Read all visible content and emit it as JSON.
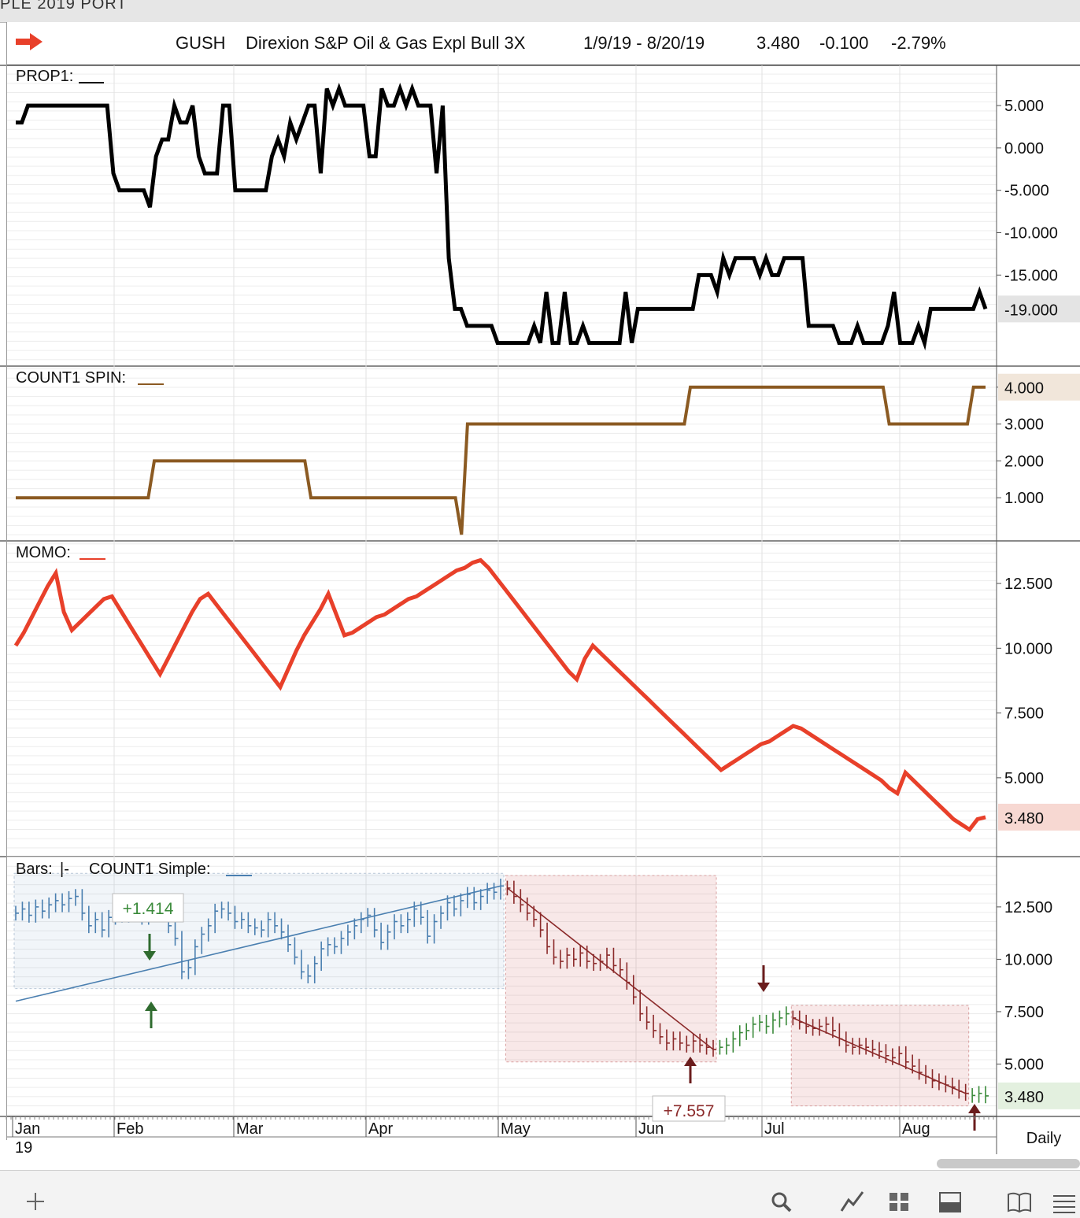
{
  "window": {
    "title_fragment": "PLE 2019 PORT"
  },
  "header": {
    "symbol": "GUSH",
    "name": "Direxion S&P Oil & Gas Expl Bull 3X",
    "date_range": "1/9/19 - 8/20/19",
    "last": "3.480",
    "change": "-0.100",
    "pct_change": "-2.79%"
  },
  "timeframe_label": "Daily",
  "x_axis": {
    "months": [
      "Jan",
      "Feb",
      "Mar",
      "Apr",
      "May",
      "Jun",
      "Jul",
      "Aug"
    ],
    "year": "19"
  },
  "toolbar": {
    "icons": [
      "plus-icon",
      "search-icon",
      "line-chart-icon",
      "grid-icon",
      "panel-icon",
      "book-icon",
      "menu-icon"
    ]
  },
  "colors": {
    "prop1": "#000000",
    "count1_spin": "#8b5a22",
    "momo": "#e8402a",
    "blue_bars": "#4a7fb0",
    "red_bars": "#8b2a2a",
    "green_bars": "#3a8a3a"
  },
  "chart_data": [
    {
      "type": "line",
      "panel": "PROP1",
      "label": "PROP1:",
      "ylim": [
        -25,
        9
      ],
      "ticks": [
        "5.000",
        "0.000",
        "-5.000",
        "-10.000",
        "-15.000"
      ],
      "last_value_label": "-19.000",
      "series": [
        {
          "values": [
            3,
            3,
            5,
            5,
            5,
            5,
            5,
            5,
            5,
            5,
            5,
            5,
            5,
            5,
            5,
            5,
            -3,
            -5,
            -5,
            -5,
            -5,
            -5,
            -7,
            -1,
            1,
            1,
            5,
            3,
            3,
            5,
            -1,
            -3,
            -3,
            -3,
            5,
            5,
            -5,
            -5,
            -5,
            -5,
            -5,
            -5,
            -1,
            1,
            -1,
            3,
            1,
            3,
            5,
            5,
            -3,
            7,
            5,
            7,
            5,
            5,
            5,
            5,
            -1,
            -1,
            7,
            5,
            5,
            7,
            5,
            7,
            5,
            5,
            5,
            -3,
            5,
            -13,
            -19,
            -19,
            -21,
            -21,
            -21,
            -21,
            -21,
            -23,
            -23,
            -23,
            -23,
            -23,
            -23,
            -21,
            -23,
            -17,
            -23,
            -23,
            -17,
            -23,
            -23,
            -21,
            -23,
            -23,
            -23,
            -23,
            -23,
            -23,
            -17,
            -23,
            -19,
            -19,
            -19,
            -19,
            -19,
            -19,
            -19,
            -19,
            -19,
            -19,
            -15,
            -15,
            -15,
            -17,
            -13,
            -15,
            -13,
            -13,
            -13,
            -13,
            -15,
            -13,
            -15,
            -15,
            -13,
            -13,
            -13,
            -13,
            -21,
            -21,
            -21,
            -21,
            -21,
            -23,
            -23,
            -23,
            -21,
            -23,
            -23,
            -23,
            -23,
            -21,
            -17,
            -23,
            -23,
            -23,
            -21,
            -23,
            -19,
            -19,
            -19,
            -19,
            -19,
            -19,
            -19,
            -19,
            -17,
            -19
          ]
        }
      ]
    },
    {
      "type": "line",
      "panel": "COUNT1 SPIN",
      "label": "COUNT1 SPIN:",
      "ylim": [
        0,
        4.4
      ],
      "ticks": [
        "4.000",
        "3.000",
        "2.000",
        "1.000"
      ],
      "last_value_label": "4.000",
      "series": [
        {
          "values": [
            1,
            1,
            1,
            1,
            1,
            1,
            1,
            1,
            1,
            1,
            1,
            1,
            1,
            1,
            1,
            1,
            1,
            1,
            1,
            1,
            1,
            1,
            1,
            2,
            2,
            2,
            2,
            2,
            2,
            2,
            2,
            2,
            2,
            2,
            2,
            2,
            2,
            2,
            2,
            2,
            2,
            2,
            2,
            2,
            2,
            2,
            2,
            2,
            2,
            1,
            1,
            1,
            1,
            1,
            1,
            1,
            1,
            1,
            1,
            1,
            1,
            1,
            1,
            1,
            1,
            1,
            1,
            1,
            1,
            1,
            1,
            1,
            1,
            1,
            0,
            3,
            3,
            3,
            3,
            3,
            3,
            3,
            3,
            3,
            3,
            3,
            3,
            3,
            3,
            3,
            3,
            3,
            3,
            3,
            3,
            3,
            3,
            3,
            3,
            3,
            3,
            3,
            3,
            3,
            3,
            3,
            3,
            3,
            3,
            3,
            3,
            3,
            4,
            4,
            4,
            4,
            4,
            4,
            4,
            4,
            4,
            4,
            4,
            4,
            4,
            4,
            4,
            4,
            4,
            4,
            4,
            4,
            4,
            4,
            4,
            4,
            4,
            4,
            4,
            4,
            4,
            4,
            4,
            4,
            4,
            3,
            3,
            3,
            3,
            3,
            3,
            3,
            3,
            3,
            3,
            3,
            3,
            3,
            3,
            4,
            4,
            4
          ]
        }
      ]
    },
    {
      "type": "line",
      "panel": "MOMO",
      "label": "MOMO:",
      "ylim": [
        2.2,
        13.9
      ],
      "ticks": [
        "12.500",
        "10.000",
        "7.500",
        "5.000"
      ],
      "last_value_label": "3.480",
      "series": [
        {
          "values": [
            10.1,
            10.6,
            11.2,
            11.8,
            12.4,
            12.9,
            11.4,
            10.7,
            11.0,
            11.3,
            11.6,
            11.9,
            12.0,
            11.5,
            11.0,
            10.5,
            10.0,
            9.5,
            9.0,
            9.6,
            10.2,
            10.8,
            11.4,
            11.9,
            12.1,
            11.7,
            11.3,
            10.9,
            10.5,
            10.1,
            9.7,
            9.3,
            8.9,
            8.5,
            9.2,
            9.9,
            10.5,
            11.0,
            11.5,
            12.1,
            11.3,
            10.5,
            10.6,
            10.8,
            11.0,
            11.2,
            11.3,
            11.5,
            11.7,
            11.9,
            12.0,
            12.2,
            12.4,
            12.6,
            12.8,
            13.0,
            13.1,
            13.3,
            13.4,
            13.1,
            12.7,
            12.3,
            11.9,
            11.5,
            11.1,
            10.7,
            10.3,
            9.9,
            9.5,
            9.1,
            8.8,
            9.6,
            10.1,
            9.8,
            9.5,
            9.2,
            8.9,
            8.6,
            8.3,
            8.0,
            7.7,
            7.4,
            7.1,
            6.8,
            6.5,
            6.2,
            5.9,
            5.6,
            5.3,
            5.5,
            5.7,
            5.9,
            6.1,
            6.3,
            6.4,
            6.6,
            6.8,
            7.0,
            6.9,
            6.7,
            6.5,
            6.3,
            6.1,
            5.9,
            5.7,
            5.5,
            5.3,
            5.1,
            4.9,
            4.6,
            4.4,
            5.2,
            4.9,
            4.6,
            4.3,
            4.0,
            3.7,
            3.4,
            3.2,
            3.0,
            3.4,
            3.48
          ]
        }
      ]
    },
    {
      "type": "bar",
      "panel": "Bars",
      "label_bars": "Bars:",
      "label_bars_glyph": "|-",
      "label_count": "COUNT1 Simple:",
      "ylim": [
        2.8,
        14.6
      ],
      "ticks": [
        "12.500",
        "10.000",
        "7.500",
        "5.000"
      ],
      "last_value_label": "3.480",
      "annotations": [
        {
          "text": "+1.414",
          "style": "green"
        },
        {
          "text": "+7.557",
          "style": "red"
        }
      ],
      "segments": [
        {
          "color": "blue",
          "closes": [
            12.2,
            12.4,
            12.1,
            12.5,
            12.3,
            12.6,
            12.8,
            12.6,
            12.9,
            13.0,
            12.2,
            11.6,
            11.9,
            11.4,
            12.0,
            12.3,
            12.1,
            12.5,
            12.4,
            12.0,
            12.3,
            12.6,
            12.2,
            11.6,
            11.0,
            9.4,
            9.6,
            10.6,
            11.2,
            11.6,
            12.3,
            12.4,
            12.2,
            11.8,
            11.9,
            11.6,
            11.5,
            11.4,
            11.9,
            11.6,
            11.3,
            10.7,
            10.1,
            9.4,
            9.2,
            9.8,
            10.5,
            10.7,
            10.6,
            11.0,
            11.3,
            11.6,
            11.9,
            12.1,
            11.4,
            10.8,
            11.3,
            11.8,
            11.6,
            11.9,
            12.4,
            12.0,
            11.1,
            11.8,
            12.2,
            12.7,
            12.4,
            12.8,
            13.1,
            12.7,
            13.0,
            13.3,
            13.2,
            13.5
          ]
        },
        {
          "color": "red",
          "closes": [
            13.4,
            13.0,
            12.6,
            12.2,
            11.9,
            11.4,
            10.6,
            10.1,
            9.9,
            10.2,
            10.0,
            10.3,
            9.9,
            9.8,
            9.9,
            10.2,
            9.7,
            9.5,
            8.9,
            8.2,
            7.4,
            7.0,
            6.6,
            6.3,
            6.0,
            6.2,
            6.0,
            5.9,
            6.1,
            5.9,
            5.8,
            5.7
          ]
        },
        {
          "color": "green",
          "closes": [
            5.8,
            5.9,
            6.2,
            6.5,
            6.6,
            6.9,
            7.0,
            6.8,
            7.1,
            7.2,
            7.4
          ]
        },
        {
          "color": "red",
          "closes": [
            7.2,
            7.0,
            6.8,
            6.7,
            6.8,
            6.9,
            6.6,
            6.2,
            5.9,
            5.8,
            5.9,
            5.8,
            5.7,
            5.6,
            5.4,
            5.3,
            5.5,
            5.1,
            4.9,
            4.6,
            4.4,
            4.2,
            4.1,
            4.0,
            3.9,
            3.7,
            3.6
          ]
        },
        {
          "color": "green",
          "closes": [
            3.5,
            3.6,
            3.48
          ]
        }
      ]
    }
  ]
}
